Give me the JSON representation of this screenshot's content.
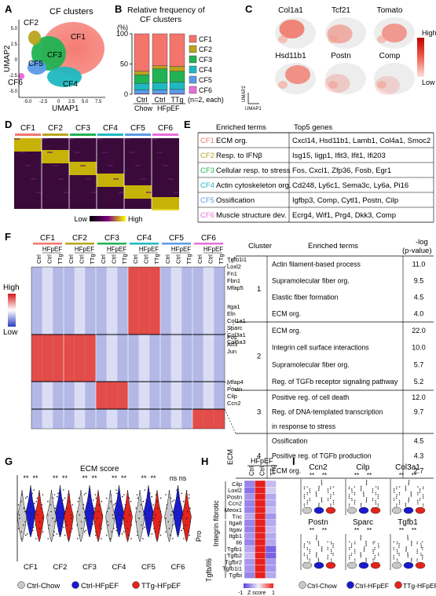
{
  "panels": {
    "A": {
      "letter": "A",
      "title": "CF clusters",
      "xlabel": "UMAP1",
      "ylabel": "UMAP2",
      "xticks": [
        "-5.0",
        "-2.5",
        "0",
        "2.5",
        "5.0",
        "7.5"
      ],
      "yticks": [
        "5.0",
        "2.5",
        "0",
        "-2.5",
        "-5.0"
      ],
      "clusters": [
        {
          "name": "CF1",
          "color": "#F4756C"
        },
        {
          "name": "CF2",
          "color": "#B8A41E"
        },
        {
          "name": "CF3",
          "color": "#21B252"
        },
        {
          "name": "CF4",
          "color": "#1FB8C0"
        },
        {
          "name": "CF5",
          "color": "#5A9BE8"
        },
        {
          "name": "CF6",
          "color": "#E86ED8"
        }
      ]
    },
    "B": {
      "letter": "B",
      "title_line1": "Relative frequency of",
      "title_line2": "CF clusters",
      "unit": "(%)",
      "note": "(n=2, each)",
      "group_chow": "Chow",
      "group_hfpef": "HFpEF"
    },
    "C": {
      "letter": "C",
      "genes": [
        "Col1a1",
        "Tcf21",
        "Tomato",
        "Hsd11b1",
        "Postn",
        "Comp"
      ],
      "legend_high": "High",
      "legend_low": "Low",
      "axis_x": "UMAP1",
      "axis_y": "UMAP2"
    },
    "D": {
      "letter": "D",
      "clusters": [
        "CF1",
        "CF2",
        "CF3",
        "CF4",
        "CF5",
        "CF6"
      ],
      "legend_low": "Low",
      "legend_high": "High"
    },
    "E": {
      "letter": "E",
      "header_terms": "Enriched terms",
      "header_genes": "Top5 genes",
      "rows": [
        {
          "cluster": "CF1",
          "term": "ECM org.",
          "genes": "Cxcl14, Hsd11b1, Lamb1, Col4a1, Smoc2"
        },
        {
          "cluster": "CF2",
          "term": "Resp. to IFNβ",
          "genes": "Isg15, Iigp1, Ifit3, Ifit1, Ifi203"
        },
        {
          "cluster": "CF3",
          "term": "Cellular resp. to stress",
          "genes": "Fos, Cxcl1, Zfp36, Fosb, Egr1"
        },
        {
          "cluster": "CF4",
          "term": "Actin cytoskeleton org.",
          "genes": "Cd248, Ly6c1, Sema3c, Ly6a, Pi16"
        },
        {
          "cluster": "CF5",
          "term": "Ossification",
          "genes": "Igfbp3, Comp, Cytl1, Postn, Cilp"
        },
        {
          "cluster": "CF6",
          "term": "Muscle structure dev.",
          "genes": "Ecrg4, Wif1, Prg4, Dkk3, Comp"
        }
      ]
    },
    "F": {
      "letter": "F",
      "clusters": [
        "CF1",
        "CF2",
        "CF3",
        "CF4",
        "CF5",
        "CF6"
      ],
      "hfpef": "HFpEF",
      "cols": [
        "Ctrl",
        "Ctrl",
        "TTg"
      ],
      "legend_high": "High",
      "legend_low": "Low",
      "gene_groups": [
        [
          "Tgfb1i1",
          "Loxl2",
          "Fn1",
          "Fbn1",
          "Mfap5"
        ],
        [
          "Itga1",
          "Eln",
          "Col1a1",
          "Sparc",
          "Col3a1",
          "Col5a3"
        ],
        [
          "Fos",
          "Atf3",
          "Jun"
        ],
        [
          "Mfap4",
          "Postn",
          "Cilp",
          "Ccn2"
        ]
      ],
      "table_header_cluster": "Cluster",
      "table_header_terms": "Enriched terms",
      "table_header_p1": "-log",
      "table_header_p2": "(p-value)",
      "table": [
        {
          "cluster": "1",
          "terms": [
            "Actin filament-based process",
            "Supramolecular fiber org.",
            "Elastic fiber formation",
            "ECM org."
          ],
          "p": [
            "11.0",
            "9.5",
            "4.5",
            "4.0"
          ]
        },
        {
          "cluster": "2",
          "terms": [
            "ECM org.",
            "Integrin cell surface interactions",
            "Supramolecular fiber org.",
            "Reg. of TGFb receptor signaling pathway"
          ],
          "p": [
            "22.0",
            "10.0",
            "5.7",
            "5.2"
          ]
        },
        {
          "cluster": "3",
          "terms": [
            "Positive reg. of cell death",
            "Reg. of DNA-templated transcription",
            "in response to stress"
          ],
          "p": [
            "12.0",
            "9.7",
            ""
          ]
        },
        {
          "cluster": "4",
          "terms": [
            "Ossification",
            "Positive reg. of TGFb production",
            "ECM org."
          ],
          "p": [
            "4.5",
            "4.3",
            "2.7"
          ]
        }
      ]
    },
    "G": {
      "letter": "G",
      "title": "ECM score",
      "clusters": [
        "CF1",
        "CF2",
        "CF3",
        "CF4",
        "CF5",
        "CF6"
      ],
      "sig": [
        "**",
        "**",
        "**",
        "**",
        "**",
        "**",
        "**",
        "**",
        "**",
        "**",
        "ns",
        "ns"
      ],
      "legend": [
        "Ctrl-Chow",
        "Ctrl-HFpEF",
        "TTg-HFpEF"
      ]
    },
    "H": {
      "letter": "H",
      "hfpef": "HFpEF",
      "cols": [
        "Ctrl",
        "Ctrl",
        "TTg"
      ],
      "group_labels": [
        "ECM",
        "Pro\nIntegrin fibrotic",
        "Tgfb/Il6"
      ],
      "genes": [
        "Cilp",
        "Loxl2",
        "Postn",
        "Ccn2",
        "Meox1",
        "Tnc",
        "Itga8",
        "Itgav",
        "Itgb1",
        "Il6",
        "Tgfb1",
        "Tgfb2",
        "Tgfbr2",
        "Tgfb1i1",
        "Tgfbi"
      ],
      "scale_min": "-1",
      "scale_mid": "Z score",
      "scale_max": "1"
    },
    "I": {
      "letter": "I",
      "genes": [
        "Ccn2",
        "Cilp",
        "Col3a1",
        "Postn",
        "Sparc",
        "Tgfb1"
      ],
      "sig": "**",
      "legend": [
        "Ctrl-Chow",
        "Ctrl-HFpEF",
        "TTg-HFpEF"
      ]
    }
  },
  "colors": {
    "ctrl_chow": "#C8C8C8",
    "ctrl_hfpef": "#1A1ACF",
    "ttg_hfpef": "#E3231C"
  },
  "chart_data": [
    {
      "type": "bar",
      "panel": "B",
      "categories": [
        "Ctrl",
        "Ctrl",
        "TTg"
      ],
      "ylim": [
        0,
        100
      ],
      "yticks": [
        0,
        50,
        100
      ],
      "series": [
        {
          "name": "CF6",
          "values": [
            1,
            1,
            1
          ]
        },
        {
          "name": "CF5",
          "values": [
            6,
            6,
            7
          ]
        },
        {
          "name": "CF4",
          "values": [
            11,
            12,
            12
          ]
        },
        {
          "name": "CF3",
          "values": [
            14,
            23,
            18
          ]
        },
        {
          "name": "CF2",
          "values": [
            6,
            5,
            8
          ]
        },
        {
          "name": "CF1",
          "values": [
            62,
            53,
            54
          ]
        }
      ],
      "stack_order_bottom_to_top": [
        "CF6",
        "CF5",
        "CF4",
        "CF3",
        "CF2",
        "CF1"
      ]
    },
    {
      "type": "heatmap",
      "panel": "H",
      "rows": [
        "Cilp",
        "Loxl2",
        "Postn",
        "Ccn2",
        "Meox1",
        "Tnc",
        "Itga8",
        "Itgav",
        "Itgb1",
        "Il6",
        "Tgfb1",
        "Tgfb2",
        "Tgfbr2",
        "Tgfb1i1",
        "Tgfbi"
      ],
      "columns": [
        "Ctrl-Chow",
        "Ctrl-HFpEF",
        "TTg-HFpEF"
      ],
      "z": [
        [
          -0.6,
          1.0,
          -0.3
        ],
        [
          -0.7,
          1.0,
          -0.2
        ],
        [
          -0.5,
          1.0,
          -0.4
        ],
        [
          -0.6,
          1.0,
          -0.4
        ],
        [
          -0.6,
          1.0,
          -0.3
        ],
        [
          -0.4,
          1.0,
          -0.5
        ],
        [
          -0.6,
          1.0,
          -0.4
        ],
        [
          -0.6,
          1.0,
          -0.3
        ],
        [
          -0.5,
          1.0,
          -0.4
        ],
        [
          -0.6,
          1.0,
          -0.4
        ],
        [
          -0.4,
          1.0,
          -0.8
        ],
        [
          -0.3,
          1.0,
          -0.8
        ],
        [
          -0.5,
          1.0,
          -0.5
        ],
        [
          -0.5,
          1.0,
          -0.5
        ],
        [
          -0.6,
          1.0,
          -0.4
        ]
      ],
      "zlim": [
        -1,
        1
      ]
    }
  ]
}
